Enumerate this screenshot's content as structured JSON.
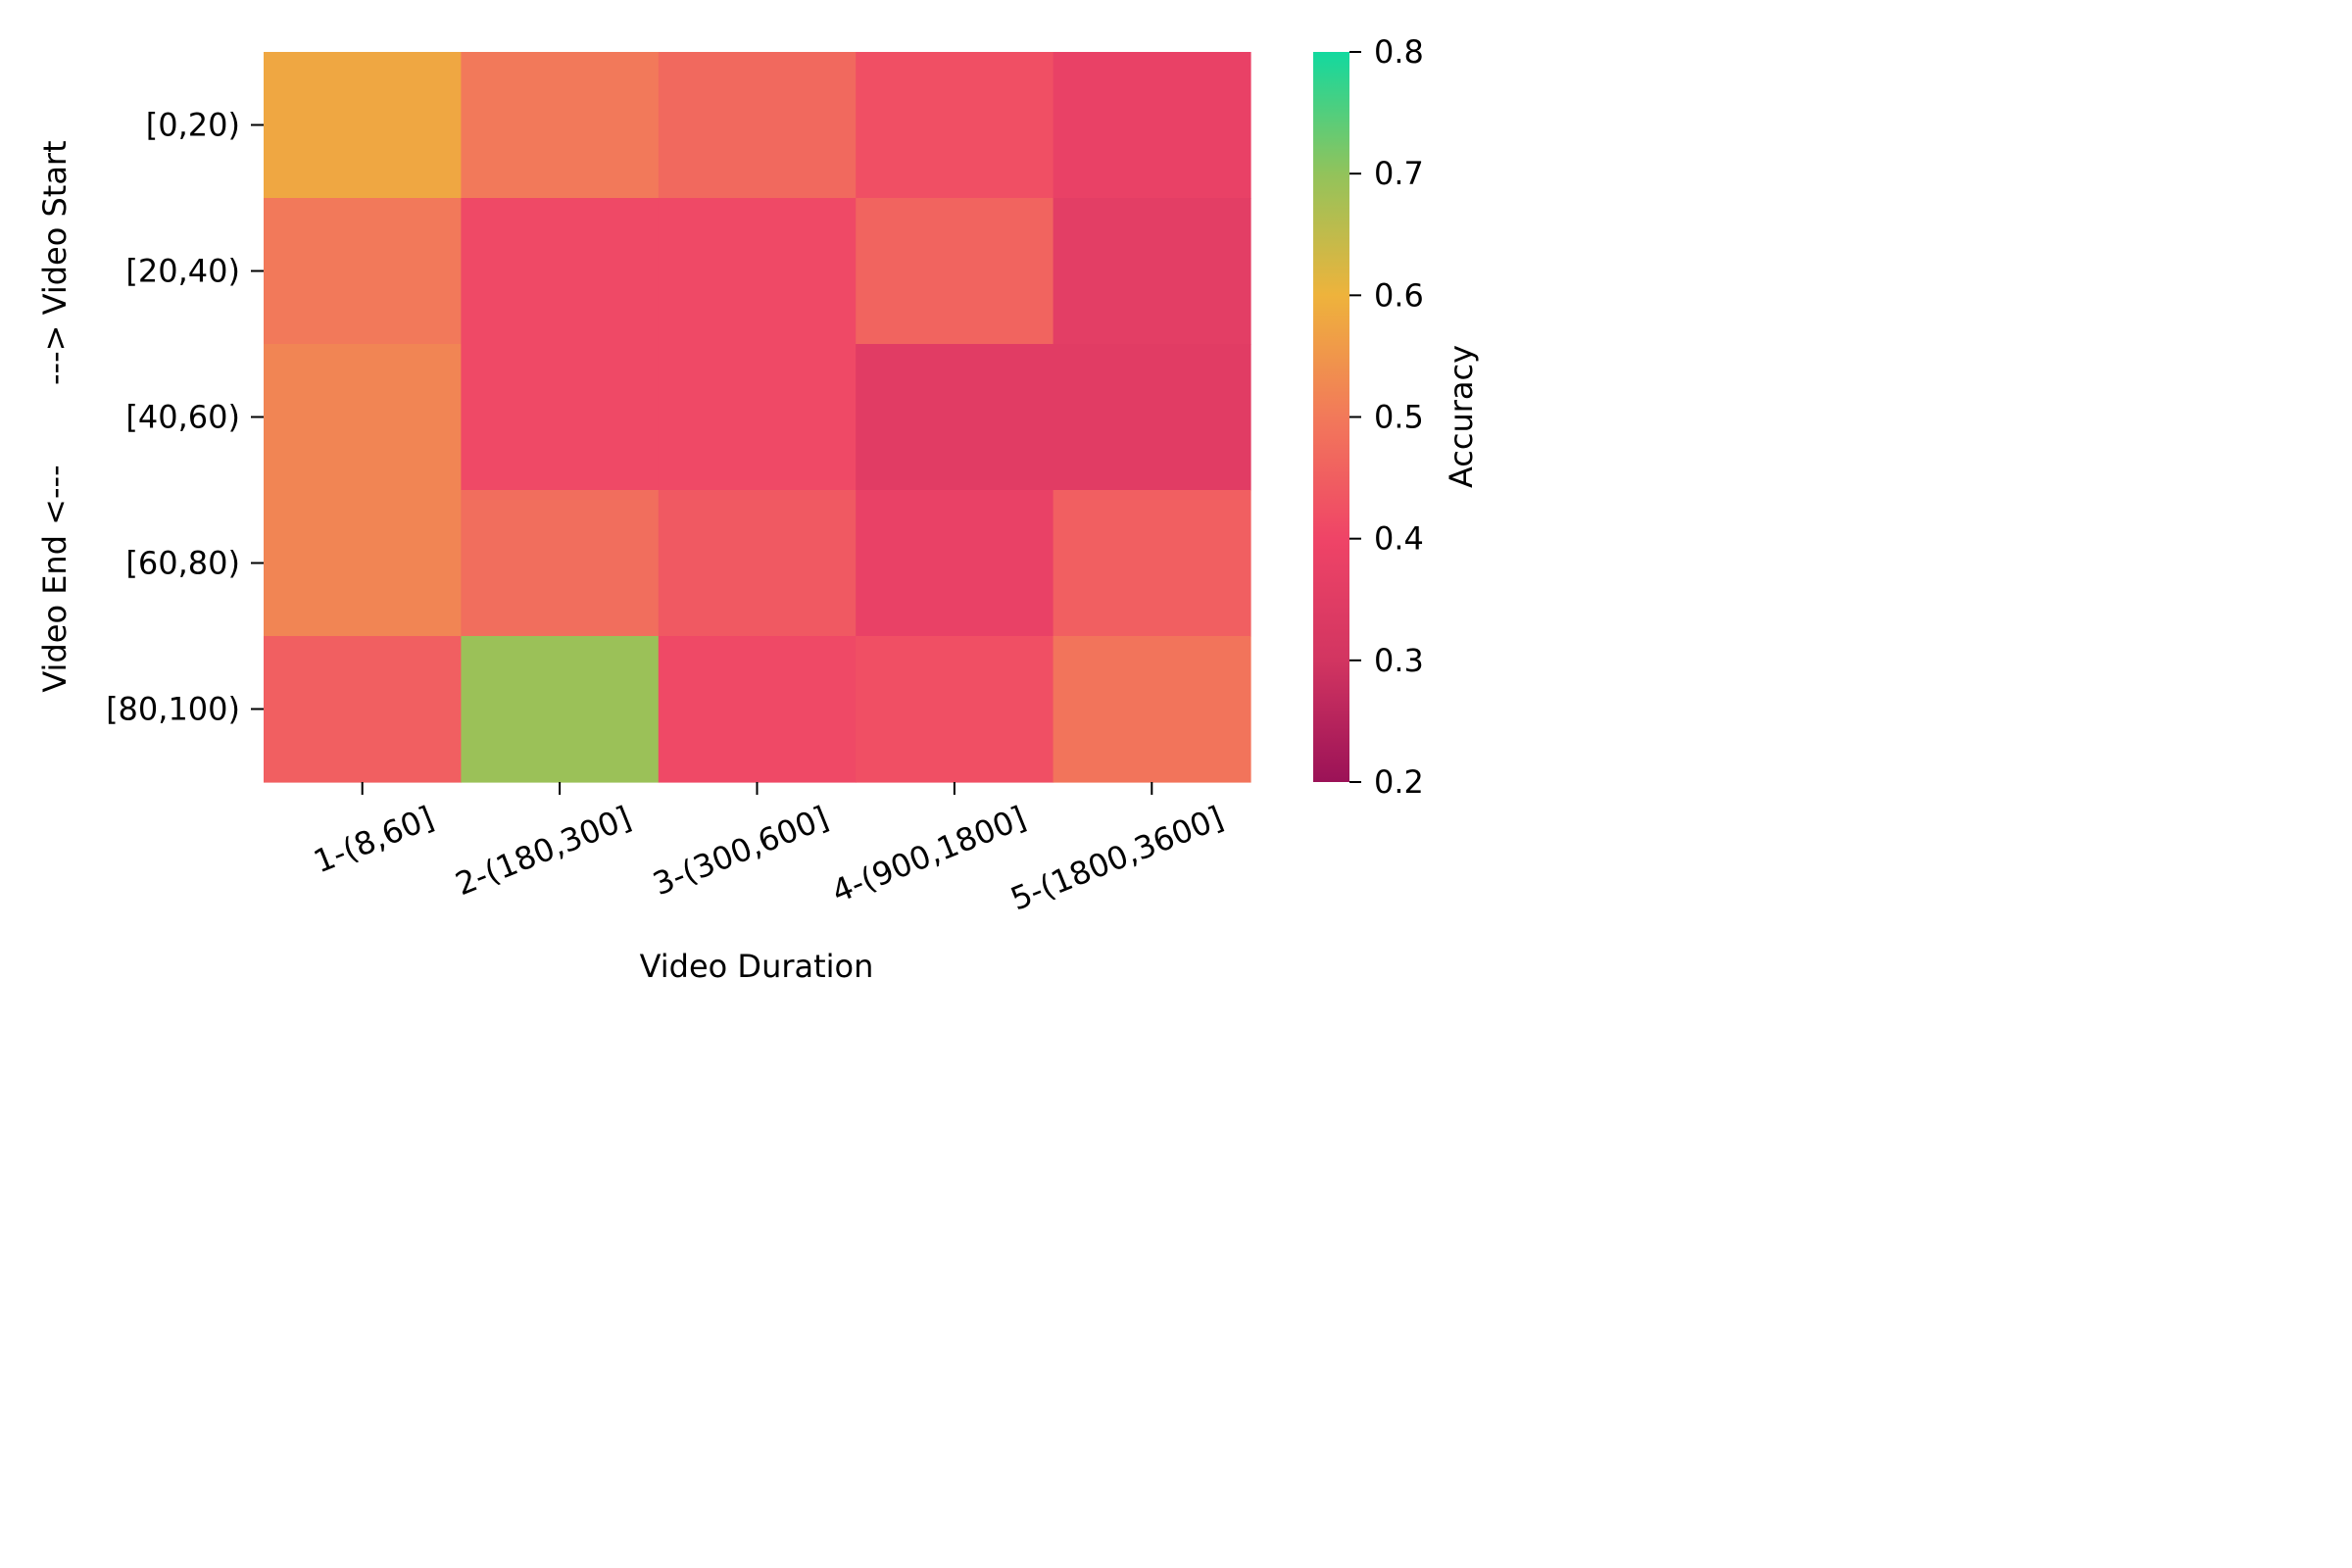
{
  "chart_data": {
    "type": "heatmap",
    "title": "",
    "xlabel": "Video Duration",
    "ylabel": "Video End <---        ---> Video Start",
    "x_categories": [
      "1-(8,60]",
      "2-(180,300]",
      "3-(300,600]",
      "4-(900,1800]",
      "5-(1800,3600]"
    ],
    "y_categories": [
      "[0,20)",
      "[20,40)",
      "[40,60)",
      "[60,80)",
      "[80,100)"
    ],
    "values": [
      [
        0.58,
        0.5,
        0.47,
        0.42,
        0.38
      ],
      [
        0.5,
        0.41,
        0.41,
        0.46,
        0.36
      ],
      [
        0.52,
        0.41,
        0.41,
        0.35,
        0.35
      ],
      [
        0.52,
        0.48,
        0.44,
        0.38,
        0.45
      ],
      [
        0.45,
        0.69,
        0.41,
        0.42,
        0.49
      ]
    ],
    "colorbar": {
      "label": "Accuracy",
      "range": [
        0.2,
        0.8
      ],
      "ticks": [
        "0.2",
        "0.3",
        "0.4",
        "0.5",
        "0.6",
        "0.7",
        "0.8"
      ],
      "colors": [
        "#9b1257",
        "#d23561",
        "#ef4467",
        "#f2795a",
        "#eeb33c",
        "#92c35b",
        "#12d99f"
      ]
    }
  }
}
